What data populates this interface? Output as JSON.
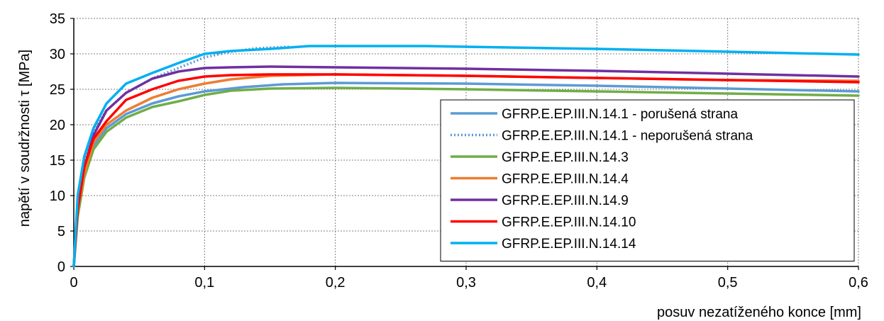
{
  "chart_data": {
    "type": "line",
    "title": "",
    "xlabel": "posuv nezatíženého konce [mm]",
    "ylabel": "napětí v soudržnosti τ [MPa]",
    "xlim": [
      0,
      0.6
    ],
    "ylim": [
      0,
      35
    ],
    "x_ticks": [
      "0",
      "0,1",
      "0,2",
      "0,3",
      "0,4",
      "0,5",
      "0,6"
    ],
    "y_ticks": [
      "0",
      "5",
      "10",
      "15",
      "20",
      "25",
      "30",
      "35"
    ],
    "grid": true,
    "legend_position": "bottom-right",
    "series": [
      {
        "name": "GFRP.E.EP.III.N.14.1 - porušená strana",
        "color": "#5b9bd5",
        "dash": "solid",
        "points": [
          [
            0,
            0
          ],
          [
            0.003,
            8
          ],
          [
            0.008,
            13
          ],
          [
            0.015,
            17
          ],
          [
            0.025,
            19.5
          ],
          [
            0.04,
            21.5
          ],
          [
            0.06,
            23
          ],
          [
            0.08,
            24
          ],
          [
            0.1,
            24.7
          ],
          [
            0.13,
            25.3
          ],
          [
            0.16,
            25.7
          ],
          [
            0.2,
            25.9
          ],
          [
            0.3,
            25.8
          ],
          [
            0.4,
            25.5
          ],
          [
            0.5,
            25.1
          ],
          [
            0.6,
            24.7
          ]
        ]
      },
      {
        "name": "GFRP.E.EP.III.N.14.1 - neporušená strana",
        "color": "#5b9bd5",
        "dash": "dotted",
        "points": [
          [
            0,
            0
          ],
          [
            0.003,
            9
          ],
          [
            0.008,
            14.5
          ],
          [
            0.015,
            19
          ],
          [
            0.025,
            22
          ],
          [
            0.04,
            24.5
          ],
          [
            0.06,
            26.5
          ],
          [
            0.08,
            28
          ],
          [
            0.1,
            29.5
          ],
          [
            0.12,
            30.3
          ],
          [
            0.14,
            30.8
          ],
          [
            0.165,
            31
          ]
        ]
      },
      {
        "name": "GFRP.E.EP.III.N.14.3",
        "color": "#70ad47",
        "dash": "solid",
        "points": [
          [
            0,
            0
          ],
          [
            0.003,
            7
          ],
          [
            0.008,
            12.5
          ],
          [
            0.015,
            16.5
          ],
          [
            0.025,
            19
          ],
          [
            0.04,
            21
          ],
          [
            0.06,
            22.5
          ],
          [
            0.08,
            23.3
          ],
          [
            0.1,
            24.2
          ],
          [
            0.12,
            24.8
          ],
          [
            0.15,
            25.1
          ],
          [
            0.2,
            25.2
          ],
          [
            0.3,
            25
          ],
          [
            0.4,
            24.7
          ],
          [
            0.5,
            24.4
          ],
          [
            0.6,
            24.1
          ]
        ]
      },
      {
        "name": "GFRP.E.EP.III.N.14.4",
        "color": "#ed7d31",
        "dash": "solid",
        "points": [
          [
            0,
            0
          ],
          [
            0.003,
            8
          ],
          [
            0.008,
            13
          ],
          [
            0.015,
            17.5
          ],
          [
            0.025,
            20
          ],
          [
            0.04,
            22
          ],
          [
            0.06,
            23.8
          ],
          [
            0.08,
            25
          ],
          [
            0.1,
            25.8
          ],
          [
            0.12,
            26.4
          ],
          [
            0.15,
            26.9
          ],
          [
            0.2,
            27.1
          ],
          [
            0.3,
            26.9
          ],
          [
            0.4,
            26.6
          ],
          [
            0.5,
            26.3
          ],
          [
            0.6,
            26.2
          ]
        ]
      },
      {
        "name": "GFRP.E.EP.III.N.14.9",
        "color": "#7030a0",
        "dash": "solid",
        "points": [
          [
            0,
            0
          ],
          [
            0.003,
            9
          ],
          [
            0.008,
            14
          ],
          [
            0.015,
            18.5
          ],
          [
            0.025,
            22
          ],
          [
            0.04,
            24.5
          ],
          [
            0.06,
            26.5
          ],
          [
            0.08,
            27.5
          ],
          [
            0.1,
            28
          ],
          [
            0.12,
            28.1
          ],
          [
            0.15,
            28.2
          ],
          [
            0.2,
            28.1
          ],
          [
            0.3,
            27.9
          ],
          [
            0.4,
            27.6
          ],
          [
            0.5,
            27.2
          ],
          [
            0.6,
            26.8
          ]
        ]
      },
      {
        "name": "GFRP.E.EP.III.N.14.10",
        "color": "#ff0000",
        "dash": "solid",
        "points": [
          [
            0,
            0
          ],
          [
            0.003,
            8
          ],
          [
            0.008,
            14
          ],
          [
            0.015,
            18
          ],
          [
            0.025,
            20.5
          ],
          [
            0.04,
            23.5
          ],
          [
            0.06,
            25
          ],
          [
            0.08,
            26.2
          ],
          [
            0.1,
            26.8
          ],
          [
            0.12,
            27
          ],
          [
            0.15,
            27.1
          ],
          [
            0.2,
            27.1
          ],
          [
            0.3,
            26.9
          ],
          [
            0.4,
            26.6
          ],
          [
            0.5,
            26.3
          ],
          [
            0.6,
            26
          ]
        ]
      },
      {
        "name": "GFRP.E.EP.III.N.14.14",
        "color": "#00b0f0",
        "dash": "solid",
        "points": [
          [
            0,
            0
          ],
          [
            0.003,
            10
          ],
          [
            0.008,
            15.5
          ],
          [
            0.015,
            19.5
          ],
          [
            0.025,
            23
          ],
          [
            0.04,
            25.8
          ],
          [
            0.06,
            27.3
          ],
          [
            0.08,
            28.7
          ],
          [
            0.1,
            30
          ],
          [
            0.12,
            30.4
          ],
          [
            0.15,
            30.7
          ],
          [
            0.18,
            31.1
          ],
          [
            0.2,
            31.1
          ],
          [
            0.27,
            31.1
          ],
          [
            0.3,
            31
          ],
          [
            0.4,
            30.7
          ],
          [
            0.5,
            30.3
          ],
          [
            0.6,
            29.9
          ]
        ]
      }
    ]
  }
}
